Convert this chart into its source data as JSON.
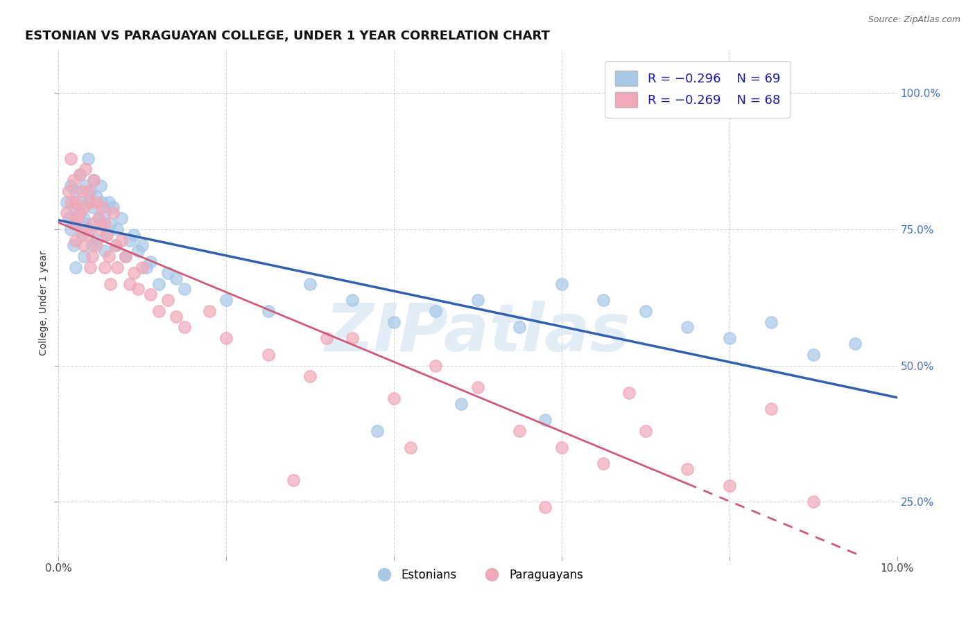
{
  "title": "ESTONIAN VS PARAGUAYAN COLLEGE, UNDER 1 YEAR CORRELATION CHART",
  "source": "Source: ZipAtlas.com",
  "ylabel": "College, Under 1 year",
  "xlim": [
    0.0,
    10.0
  ],
  "ylim": [
    15.0,
    108.0
  ],
  "yticks": [
    25.0,
    50.0,
    75.0,
    100.0
  ],
  "yticklabels": [
    "25.0%",
    "50.0%",
    "75.0%",
    "100.0%"
  ],
  "legend_label1": "Estonians",
  "legend_label2": "Paraguayans",
  "blue_color": "#a8c8e8",
  "pink_color": "#f0a8b8",
  "blue_line_color": "#3060b0",
  "pink_line_color": "#d05878",
  "blue_x": [
    0.1,
    0.12,
    0.15,
    0.15,
    0.18,
    0.18,
    0.2,
    0.2,
    0.22,
    0.25,
    0.25,
    0.28,
    0.28,
    0.3,
    0.3,
    0.32,
    0.32,
    0.35,
    0.35,
    0.38,
    0.38,
    0.4,
    0.4,
    0.42,
    0.45,
    0.45,
    0.48,
    0.5,
    0.5,
    0.52,
    0.55,
    0.55,
    0.58,
    0.6,
    0.62,
    0.65,
    0.68,
    0.7,
    0.75,
    0.8,
    0.85,
    0.9,
    0.95,
    1.0,
    1.05,
    1.1,
    1.2,
    1.3,
    1.4,
    1.5,
    2.0,
    2.5,
    3.0,
    3.5,
    4.0,
    4.5,
    5.0,
    5.5,
    6.0,
    6.5,
    7.0,
    7.5,
    8.0,
    8.5,
    9.0,
    9.5,
    3.8,
    4.8,
    5.8
  ],
  "blue_y": [
    80,
    77,
    83,
    75,
    79,
    72,
    82,
    68,
    76,
    85,
    78,
    80,
    74,
    77,
    70,
    83,
    76,
    88,
    80,
    82,
    75,
    79,
    72,
    84,
    81,
    73,
    77,
    83,
    76,
    80,
    78,
    71,
    74,
    80,
    76,
    79,
    72,
    75,
    77,
    70,
    73,
    74,
    71,
    72,
    68,
    69,
    65,
    67,
    66,
    64,
    62,
    60,
    65,
    62,
    58,
    60,
    62,
    57,
    65,
    62,
    60,
    57,
    55,
    58,
    52,
    54,
    38,
    43,
    40
  ],
  "pink_x": [
    0.1,
    0.12,
    0.15,
    0.15,
    0.18,
    0.18,
    0.2,
    0.2,
    0.22,
    0.25,
    0.25,
    0.28,
    0.28,
    0.3,
    0.3,
    0.32,
    0.35,
    0.35,
    0.38,
    0.38,
    0.4,
    0.4,
    0.42,
    0.45,
    0.45,
    0.48,
    0.5,
    0.52,
    0.55,
    0.55,
    0.58,
    0.6,
    0.65,
    0.68,
    0.7,
    0.75,
    0.8,
    0.85,
    0.9,
    0.95,
    1.0,
    1.1,
    1.2,
    1.3,
    1.4,
    1.5,
    2.0,
    2.5,
    3.0,
    3.5,
    4.0,
    4.5,
    5.0,
    5.5,
    6.0,
    6.5,
    7.0,
    7.5,
    8.0,
    8.5,
    9.0,
    0.62,
    2.8,
    5.8,
    6.8,
    4.2,
    3.2,
    1.8
  ],
  "pink_y": [
    78,
    82,
    88,
    80,
    84,
    76,
    80,
    73,
    77,
    85,
    78,
    82,
    75,
    79,
    72,
    86,
    82,
    74,
    80,
    68,
    76,
    70,
    84,
    80,
    72,
    77,
    75,
    79,
    76,
    68,
    74,
    70,
    78,
    72,
    68,
    73,
    70,
    65,
    67,
    64,
    68,
    63,
    60,
    62,
    59,
    57,
    55,
    52,
    48,
    55,
    44,
    50,
    46,
    38,
    35,
    32,
    38,
    31,
    28,
    42,
    25,
    65,
    29,
    24,
    45,
    35,
    55,
    60
  ]
}
